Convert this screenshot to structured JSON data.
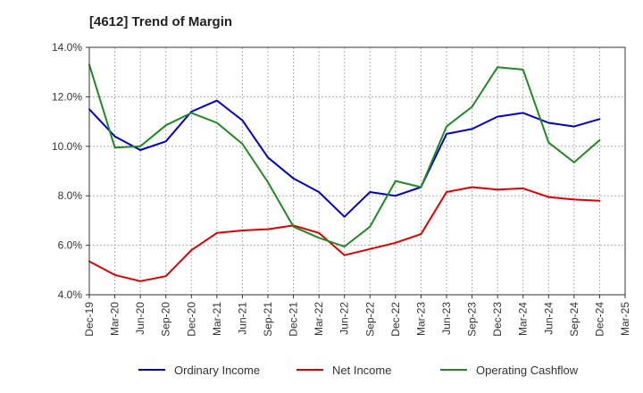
{
  "chart_data": {
    "type": "line",
    "title": "[4612]  Trend of Margin",
    "xlabel": "",
    "ylabel": "",
    "categories": [
      "Dec-19",
      "Mar-20",
      "Jun-20",
      "Sep-20",
      "Dec-20",
      "Mar-21",
      "Jun-21",
      "Sep-21",
      "Dec-21",
      "Mar-22",
      "Jun-22",
      "Sep-22",
      "Dec-22",
      "Mar-23",
      "Jun-23",
      "Sep-23",
      "Dec-23",
      "Mar-24",
      "Jun-24",
      "Sep-24",
      "Dec-24",
      "Mar-25"
    ],
    "y_ticks": [
      "4.0%",
      "6.0%",
      "8.0%",
      "10.0%",
      "12.0%",
      "14.0%"
    ],
    "ylim": [
      4,
      14
    ],
    "grid": true,
    "legend_position": "bottom",
    "series": [
      {
        "name": "Ordinary Income",
        "color": "#0000cc",
        "values": [
          11.5,
          10.4,
          9.85,
          10.2,
          11.4,
          11.85,
          11.05,
          9.55,
          8.7,
          8.15,
          7.15,
          8.15,
          8.0,
          8.35,
          10.5,
          10.7,
          11.2,
          11.35,
          10.95,
          10.8,
          11.1,
          null
        ]
      },
      {
        "name": "Net Income",
        "color": "#dd0000",
        "values": [
          5.35,
          4.8,
          4.55,
          4.75,
          5.8,
          6.5,
          6.6,
          6.65,
          6.8,
          6.5,
          5.6,
          5.85,
          6.1,
          6.45,
          8.15,
          8.35,
          8.25,
          8.3,
          7.95,
          7.85,
          7.8,
          null
        ]
      },
      {
        "name": "Operating Cashflow",
        "color": "#228822",
        "values": [
          13.3,
          9.95,
          10.0,
          10.85,
          11.35,
          10.95,
          10.1,
          8.55,
          6.75,
          6.3,
          5.95,
          6.75,
          8.6,
          8.35,
          10.8,
          11.6,
          13.2,
          13.1,
          10.15,
          9.35,
          10.25,
          null
        ]
      }
    ]
  }
}
